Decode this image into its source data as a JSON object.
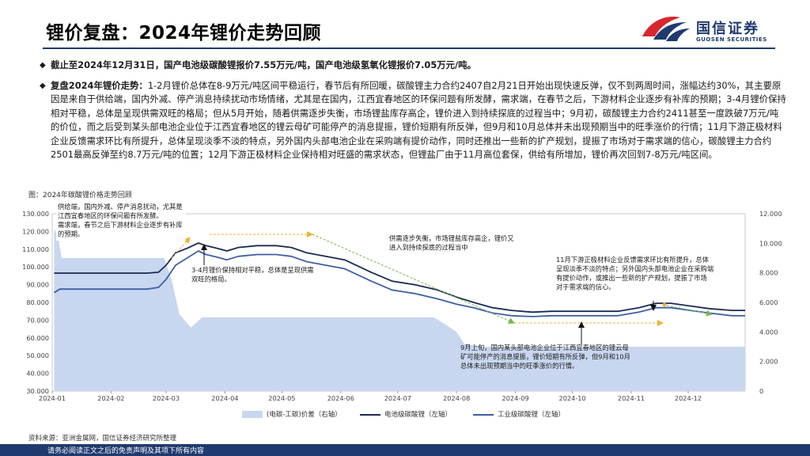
{
  "header": {
    "title": "锂价复盘：2024年锂价走势回顾",
    "logo_cn": "国信证券",
    "logo_en": "GUOSEN SECURITIES"
  },
  "body": {
    "p1": "截止至2024年12月31日，国产电池级碳酸锂报价7.55万元/吨，国产电池级氢氧化锂报价7.05万元/吨。",
    "p2_lead": "复盘2024年锂价走势：",
    "p2_text": "1-2月锂价总体在8-9万元/吨区间平稳运行，春节后有所回暖，碳酸锂主力合约2407自2月21日开始出现快速反弹，仅不到两周时间，涨幅达约30%，其主要原因是来自于供给端，国内外减、停产消息持续扰动市场情绪，尤其是在国内，江西宜春地区的环保问题有所发酵，需求端，在春节之后，下游材料企业逐步有补库的预期；3-4月锂价保持相对平稳，总体是呈现供需双旺的格局；但从5月开始，随着供需逐步失衡，市场锂盐库存高企，锂价进入到持续探底的过程当中；9月初，碳酸锂主力合约2411甚至一度跌破7万元/吨的价位，而之后受到某头部电池企业位于江西宜春地区的锂云母矿可能停产的消息提振，锂价短期有所反弹，但9月和10月总体并未出现预期当中的旺季涨价的行情；11月下游正极材料企业反馈需求环比有所提升，总体呈现淡季不淡的特点，另外国内头部电池企业在采购端有提价动作，同时还推出一些新的扩产规划，提振了市场对于需求端的信心，碳酸锂主力合约2501最高反弹至约8.7万元/吨的位置；12月下游正极材料企业保持相对旺盛的需求状态，但锂盐厂由于11月高位套保，供给有所增加，锂价再次回到7-8万元/吨区间。"
  },
  "figure": {
    "label": "图：2024年碳酸锂价格走势回顾",
    "source": "资料来源：亚洲金属网，国信证券经济研究所整理"
  },
  "footer": {
    "disclaimer": "请务必阅读正文之后的免责声明及其项下所有内容"
  },
  "colors": {
    "navy": "#1f3a6e",
    "battery": "#1b2a55",
    "industrial": "#3d5fa6",
    "spread": "#c8d7ef",
    "arrow": "#f2b033",
    "green": "#7ab648"
  },
  "chart_data": {
    "type": "line",
    "x_ticks": [
      "2024-01",
      "2024-02",
      "2024-03",
      "2024-04",
      "2024-05",
      "2024-06",
      "2024-07",
      "2024-08",
      "2024-09",
      "2024-10",
      "2024-11",
      "2024-12"
    ],
    "y_left_ticks": [
      "130.000",
      "120.000",
      "110.000",
      "100.000",
      "90.000",
      "80.000",
      "70.000",
      "60.000",
      "50.000",
      "40.000",
      "30.000"
    ],
    "y_right_ticks": [
      "12.000",
      "10.000",
      "8.000",
      "6.000",
      "4.000",
      "2.000",
      "0"
    ],
    "ylim_left": [
      30000,
      130000
    ],
    "ylim_right": [
      0,
      12000
    ],
    "series": [
      {
        "name": "(电碳-工碳)价差（右轴）",
        "type": "area",
        "axis": "right",
        "points": [
          [
            "2024-01-02",
            11000
          ],
          [
            "2024-01-04",
            10500
          ],
          [
            "2024-01-06",
            9000
          ],
          [
            "2024-01-10",
            9000
          ],
          [
            "2024-02-05",
            9000
          ],
          [
            "2024-02-29",
            9000
          ],
          [
            "2024-03-04",
            7500
          ],
          [
            "2024-03-08",
            5200
          ],
          [
            "2024-03-14",
            4300
          ],
          [
            "2024-03-20",
            5000
          ],
          [
            "2024-03-29",
            5000
          ],
          [
            "2024-04-10",
            5000
          ],
          [
            "2024-05-06",
            5000
          ],
          [
            "2024-05-31",
            5000
          ],
          [
            "2024-06-10",
            5000
          ],
          [
            "2024-07-20",
            5000
          ],
          [
            "2024-07-25",
            4600
          ],
          [
            "2024-08-01",
            4000
          ],
          [
            "2024-08-05",
            3200
          ],
          [
            "2024-08-15",
            3000
          ],
          [
            "2024-08-30",
            3000
          ],
          [
            "2024-09-05",
            3000
          ],
          [
            "2024-09-30",
            3000
          ],
          [
            "2024-10-31",
            3000
          ],
          [
            "2024-11-30",
            3000
          ],
          [
            "2024-12-31",
            3000
          ]
        ]
      },
      {
        "name": "电池级碳酸锂（左轴）",
        "type": "line",
        "axis": "left",
        "points": [
          [
            "2024-01-02",
            96500
          ],
          [
            "2024-01-05",
            96500
          ],
          [
            "2024-01-20",
            96500
          ],
          [
            "2024-02-08",
            96500
          ],
          [
            "2024-02-20",
            96500
          ],
          [
            "2024-02-26",
            97000
          ],
          [
            "2024-03-01",
            101000
          ],
          [
            "2024-03-06",
            108000
          ],
          [
            "2024-03-12",
            110500
          ],
          [
            "2024-03-18",
            113500
          ],
          [
            "2024-03-22",
            112000
          ],
          [
            "2024-03-28",
            110500
          ],
          [
            "2024-04-02",
            109000
          ],
          [
            "2024-04-08",
            111000
          ],
          [
            "2024-04-18",
            112000
          ],
          [
            "2024-04-28",
            112000
          ],
          [
            "2024-05-06",
            111000
          ],
          [
            "2024-05-14",
            108000
          ],
          [
            "2024-05-24",
            106000
          ],
          [
            "2024-06-03",
            104000
          ],
          [
            "2024-06-17",
            97000
          ],
          [
            "2024-06-28",
            92000
          ],
          [
            "2024-07-10",
            90000
          ],
          [
            "2024-07-22",
            87000
          ],
          [
            "2024-08-01",
            83000
          ],
          [
            "2024-08-10",
            80000
          ],
          [
            "2024-08-20",
            77000
          ],
          [
            "2024-08-30",
            75500
          ],
          [
            "2024-09-10",
            74500
          ],
          [
            "2024-09-20",
            75000
          ],
          [
            "2024-09-30",
            75000
          ],
          [
            "2024-10-10",
            75000
          ],
          [
            "2024-10-25",
            75000
          ],
          [
            "2024-11-05",
            77000
          ],
          [
            "2024-11-14",
            79500
          ],
          [
            "2024-11-22",
            79500
          ],
          [
            "2024-12-02",
            78000
          ],
          [
            "2024-12-12",
            76500
          ],
          [
            "2024-12-24",
            75500
          ],
          [
            "2024-12-31",
            75500
          ]
        ]
      },
      {
        "name": "工业级碳酸锂（左轴）",
        "type": "line",
        "axis": "left",
        "points": [
          [
            "2024-01-02",
            85500
          ],
          [
            "2024-01-05",
            87500
          ],
          [
            "2024-01-20",
            87500
          ],
          [
            "2024-02-08",
            87500
          ],
          [
            "2024-02-20",
            87500
          ],
          [
            "2024-02-26",
            88500
          ],
          [
            "2024-03-01",
            93000
          ],
          [
            "2024-03-06",
            101000
          ],
          [
            "2024-03-12",
            105000
          ],
          [
            "2024-03-18",
            109000
          ],
          [
            "2024-03-22",
            107000
          ],
          [
            "2024-03-28",
            105500
          ],
          [
            "2024-04-02",
            104000
          ],
          [
            "2024-04-08",
            106000
          ],
          [
            "2024-04-18",
            107000
          ],
          [
            "2024-04-28",
            107000
          ],
          [
            "2024-05-06",
            106000
          ],
          [
            "2024-05-14",
            103000
          ],
          [
            "2024-05-24",
            101000
          ],
          [
            "2024-06-03",
            99000
          ],
          [
            "2024-06-17",
            92000
          ],
          [
            "2024-06-28",
            87000
          ],
          [
            "2024-07-10",
            85000
          ],
          [
            "2024-07-22",
            82000
          ],
          [
            "2024-08-01",
            79000
          ],
          [
            "2024-08-10",
            77000
          ],
          [
            "2024-08-20",
            74000
          ],
          [
            "2024-08-30",
            72500
          ],
          [
            "2024-09-10",
            72000
          ],
          [
            "2024-09-20",
            72500
          ],
          [
            "2024-09-30",
            72500
          ],
          [
            "2024-10-10",
            72500
          ],
          [
            "2024-10-25",
            72500
          ],
          [
            "2024-11-05",
            74500
          ],
          [
            "2024-11-14",
            77000
          ],
          [
            "2024-11-22",
            77000
          ],
          [
            "2024-12-02",
            75500
          ],
          [
            "2024-12-12",
            74000
          ],
          [
            "2024-12-24",
            72500
          ],
          [
            "2024-12-31",
            72500
          ]
        ]
      }
    ],
    "annotations": [
      {
        "lines": [
          "供给端，国内外减、停产消息扰动，尤其是",
          "江西宜春地区的环保问题有所发酵。",
          "需求端，春节之后下游材料企业逐步有补库",
          "的预期。"
        ]
      },
      {
        "lines": [
          "3-4月锂价保持相对平稳，总体是呈现供需",
          "双旺的格局。"
        ]
      },
      {
        "lines": [
          "供需逐步失衡，市场锂盐库存高企，锂价又",
          "进入到持续探底的过程当中"
        ]
      },
      {
        "lines": [
          "11月下游正极材料企业反馈需求环比有所提升，总体",
          "呈现淡季不淡的特点；另外国内头部电池企业在采购端",
          "有提价动作，或推出一些新的扩产规划，提振了市场",
          "对于需求端的信心。"
        ]
      },
      {
        "lines": [
          "9月上旬，国内某头部电池企业位于江西宜春地区的锂云母",
          "矿可能停产的消息提振，锂价短期有所反弹，但9月和10月",
          "总体未出现预期当中的旺季涨价的行情。"
        ]
      }
    ]
  }
}
